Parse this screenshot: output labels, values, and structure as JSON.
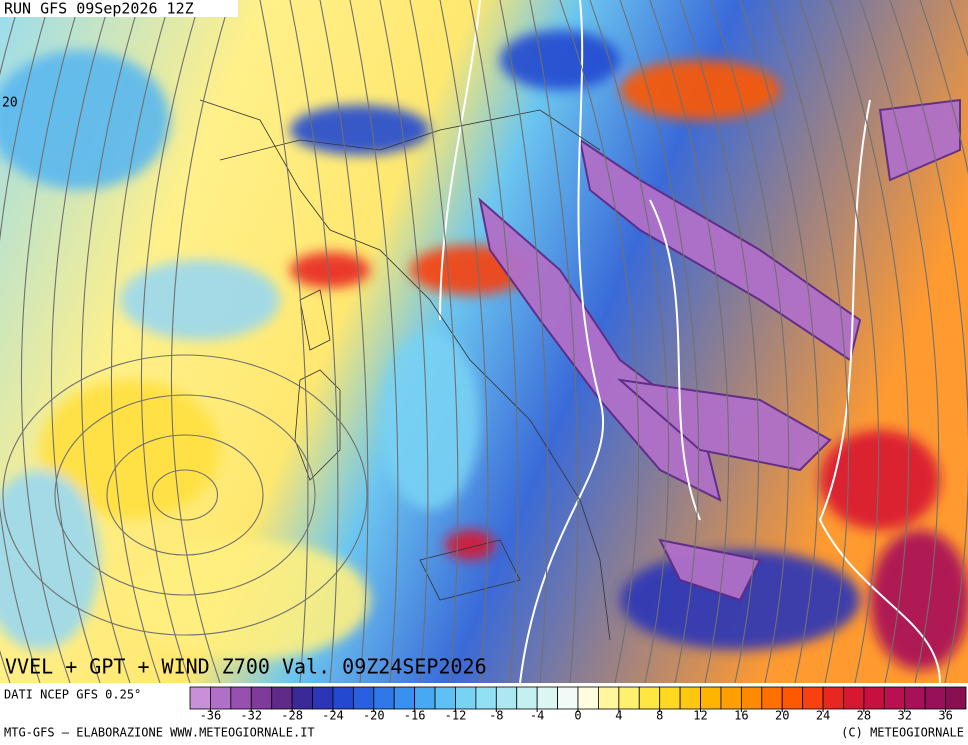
{
  "header": {
    "run": "RUN GFS 09Sep2026 12Z",
    "lat_label": "20"
  },
  "footer": {
    "title": "VVEL + GPT + WIND Z700 Val. 09Z24SEP2026",
    "source": "DATI NCEP GFS 0.25°",
    "credit_left": "MTG-GFS — ELABORAZIONE WWW.METEOGIORNALE.IT",
    "credit_right": "(C) METEOGIORNALE"
  },
  "colorbar": {
    "min": -38,
    "max": 38,
    "ticks": [
      -36,
      -32,
      -28,
      -24,
      -20,
      -16,
      -12,
      -8,
      -4,
      0,
      4,
      8,
      12,
      16,
      20,
      24,
      28,
      32,
      36
    ],
    "colors": [
      "#c890d8",
      "#b070c8",
      "#9850b0",
      "#803a9c",
      "#602a88",
      "#3a2a98",
      "#2a35b8",
      "#2448d0",
      "#2a60e0",
      "#3078e8",
      "#3a90ee",
      "#48a8f2",
      "#5ec0f4",
      "#78d2f4",
      "#92e0f4",
      "#ace8f2",
      "#c4f0f2",
      "#dcf6f4",
      "#f0fbf8",
      "#fffce0",
      "#fff6a0",
      "#fff070",
      "#ffe640",
      "#ffd820",
      "#ffc810",
      "#ffb400",
      "#ffa000",
      "#ff8a00",
      "#ff7000",
      "#ff5800",
      "#f84010",
      "#e82820",
      "#d81830",
      "#c81040",
      "#b81050",
      "#a81058",
      "#981058",
      "#881050"
    ]
  }
}
